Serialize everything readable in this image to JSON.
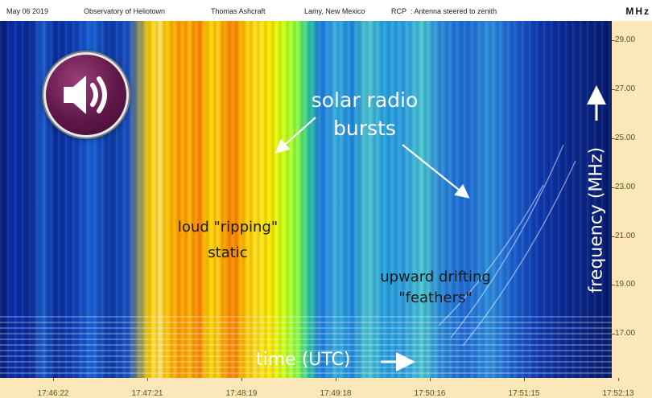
{
  "header": {
    "date": "May 06 2019",
    "observatory": "Observatory of Heliotown",
    "observer": "Thomas Ashcraft",
    "location": "Lamy, New Mexico",
    "polarization": "RCP",
    "antenna": ":  Antenna steered to zenith",
    "unit": "MHz"
  },
  "annotations": {
    "solar_radio": "solar radio",
    "bursts": "bursts",
    "ripping_line1": "loud \"ripping\"",
    "ripping_line2": "static",
    "upward_line1": "upward drifting",
    "upward_line2": "\"feathers\"",
    "time_label": "time (UTC)",
    "freq_label": "frequency (MHz)"
  },
  "speaker": {
    "icon": "speaker-volume-icon",
    "color": "#5e1748"
  },
  "chart_data": {
    "type": "heatmap",
    "title": "",
    "xlabel": "time (UTC)",
    "ylabel": "frequency (MHz)",
    "x_ticks": [
      "17:46:22",
      "17:47:21",
      "17:48:19",
      "17:49:18",
      "17:50:16",
      "17:51:15",
      "17:52:13"
    ],
    "y_ticks": [
      "29.00",
      "27.00",
      "25.00",
      "23.00",
      "21.00",
      "19.00",
      "17.00"
    ],
    "y_values": [
      29,
      27,
      25,
      23,
      21,
      19,
      17
    ],
    "ylim": [
      15.2,
      29.8
    ],
    "colormap": [
      "#071a72",
      "#1a5fd0",
      "#4cc8d2",
      "#90ff40",
      "#ffe800",
      "#ff8400"
    ],
    "grid": false
  }
}
